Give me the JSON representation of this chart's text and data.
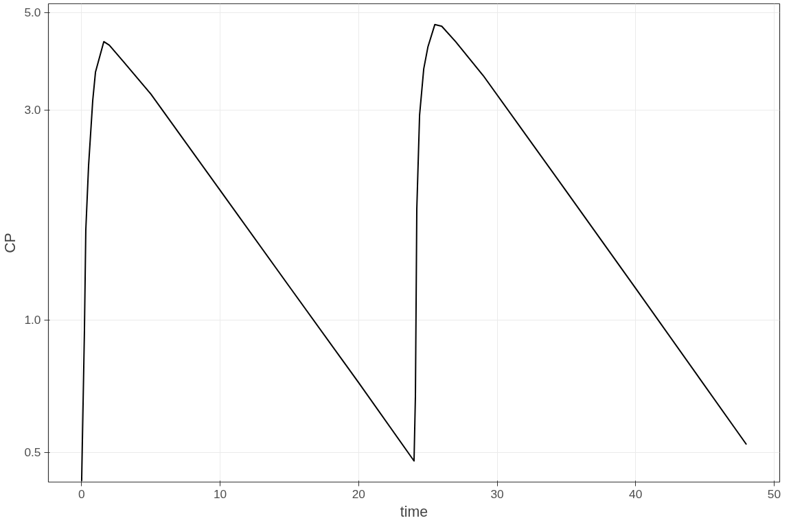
{
  "chart_data": {
    "type": "line",
    "xlabel": "time",
    "ylabel": "CP",
    "log": "y",
    "grid": true,
    "xlim": [
      -2.4,
      50.4
    ],
    "xticks": [
      0,
      10,
      20,
      30,
      40,
      50
    ],
    "ylim": [
      0.428,
      5.23
    ],
    "yticks": [
      0.5,
      {
        "value": 1,
        "label": "1.0"
      },
      {
        "value": 3,
        "label": "3.0"
      },
      {
        "value": 5,
        "label": "5.0"
      }
    ],
    "x": [
      0,
      0.2,
      0.3,
      0.5,
      0.8,
      1.0,
      1.6,
      2.0,
      3.0,
      5.0,
      10,
      15,
      20,
      24,
      24.1,
      24.2,
      24.4,
      24.7,
      25,
      25.5,
      26,
      27,
      29,
      35,
      40,
      48
    ],
    "series": [
      {
        "color": "#000000",
        "values": [
          0.43,
          0.94,
          1.6,
          2.24,
          3.15,
          3.66,
          4.29,
          4.21,
          3.87,
          3.26,
          1.97,
          1.19,
          0.72,
          0.478,
          0.673,
          1.79,
          2.92,
          3.72,
          4.17,
          4.69,
          4.65,
          4.29,
          3.59,
          1.96,
          1.18,
          0.521
        ]
      }
    ]
  }
}
